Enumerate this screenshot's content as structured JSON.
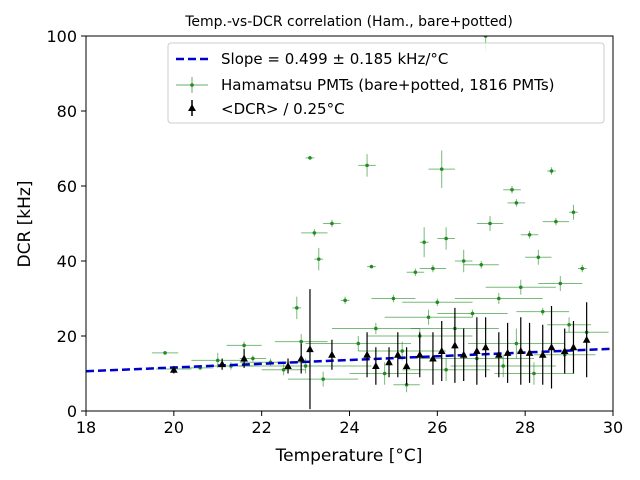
{
  "chart_data": {
    "type": "scatter",
    "title": "Temp.-vs-DCR correlation (Ham., bare+potted)",
    "xlabel": "Temperature [°C]",
    "ylabel": "DCR [kHz]",
    "xlim": [
      18,
      30
    ],
    "ylim": [
      0,
      100
    ],
    "xticks": [
      18,
      20,
      22,
      24,
      26,
      28,
      30
    ],
    "yticks": [
      0,
      20,
      40,
      60,
      80,
      100
    ],
    "legend_position": "top-right",
    "colors": {
      "fit": "#0000cc",
      "pmts": "#228b22",
      "binned": "#000000"
    },
    "series": [
      {
        "name": "Slope = 0.499 ± 0.185 kHz/°C",
        "kind": "fit-line",
        "slope": 0.499,
        "x": [
          18,
          30
        ],
        "y": [
          10.6,
          16.6
        ]
      },
      {
        "name": "Hamamatsu PMTs (bare+potted, 1816 PMTs)",
        "kind": "errorbar-scatter",
        "points": [
          {
            "x": 19.8,
            "y": 15.5,
            "xerr": 0.3,
            "yerr": 0.5
          },
          {
            "x": 20.0,
            "y": 11.2,
            "xerr": 0.4,
            "yerr": 0.6
          },
          {
            "x": 20.6,
            "y": 11.5,
            "xerr": 0.3,
            "yerr": 0.5
          },
          {
            "x": 21.0,
            "y": 13.5,
            "xerr": 0.6,
            "yerr": 2.0
          },
          {
            "x": 21.3,
            "y": 12.0,
            "xerr": 0.5,
            "yerr": 1.0
          },
          {
            "x": 21.6,
            "y": 17.5,
            "xerr": 0.4,
            "yerr": 1.0
          },
          {
            "x": 21.8,
            "y": 14.0,
            "xerr": 0.3,
            "yerr": 0.8
          },
          {
            "x": 22.2,
            "y": 13.0,
            "xerr": 0.7,
            "yerr": 1.0
          },
          {
            "x": 22.5,
            "y": 11.0,
            "xerr": 0.5,
            "yerr": 1.5
          },
          {
            "x": 22.8,
            "y": 27.5,
            "xerr": 0.1,
            "yerr": 3.0
          },
          {
            "x": 22.9,
            "y": 18.5,
            "xerr": 0.6,
            "yerr": 2.0
          },
          {
            "x": 23.1,
            "y": 67.5,
            "xerr": 0.1,
            "yerr": 0.5
          },
          {
            "x": 23.2,
            "y": 47.5,
            "xerr": 0.3,
            "yerr": 1.0
          },
          {
            "x": 23.3,
            "y": 40.5,
            "xerr": 0.1,
            "yerr": 3.0
          },
          {
            "x": 23.4,
            "y": 8.5,
            "xerr": 0.8,
            "yerr": 2.0
          },
          {
            "x": 23.6,
            "y": 50.0,
            "xerr": 0.2,
            "yerr": 1.0
          },
          {
            "x": 23.9,
            "y": 29.5,
            "xerr": 0.1,
            "yerr": 1.0
          },
          {
            "x": 24.4,
            "y": 65.5,
            "xerr": 0.2,
            "yerr": 3.0
          },
          {
            "x": 24.5,
            "y": 38.5,
            "xerr": 0.1,
            "yerr": 0.5
          },
          {
            "x": 24.6,
            "y": 22.0,
            "xerr": 1.0,
            "yerr": 1.5
          },
          {
            "x": 24.8,
            "y": 10.0,
            "xerr": 0.8,
            "yerr": 3.0
          },
          {
            "x": 25.0,
            "y": 30.0,
            "xerr": 0.5,
            "yerr": 1.0
          },
          {
            "x": 25.3,
            "y": 7.0,
            "xerr": 0.3,
            "yerr": 2.0
          },
          {
            "x": 25.5,
            "y": 37.0,
            "xerr": 0.2,
            "yerr": 1.0
          },
          {
            "x": 25.6,
            "y": 20.0,
            "xerr": 1.2,
            "yerr": 2.0
          },
          {
            "x": 25.7,
            "y": 45.0,
            "xerr": 0.1,
            "yerr": 4.0
          },
          {
            "x": 25.9,
            "y": 38.0,
            "xerr": 0.3,
            "yerr": 1.0
          },
          {
            "x": 26.0,
            "y": 29.0,
            "xerr": 0.8,
            "yerr": 1.0
          },
          {
            "x": 26.1,
            "y": 64.5,
            "xerr": 0.3,
            "yerr": 5.0
          },
          {
            "x": 26.2,
            "y": 46.0,
            "xerr": 0.2,
            "yerr": 3.0
          },
          {
            "x": 26.4,
            "y": 22.0,
            "xerr": 1.0,
            "yerr": 2.0
          },
          {
            "x": 26.6,
            "y": 40.0,
            "xerr": 0.2,
            "yerr": 3.0
          },
          {
            "x": 26.8,
            "y": 26.0,
            "xerr": 0.8,
            "yerr": 1.0
          },
          {
            "x": 27.0,
            "y": 39.0,
            "xerr": 0.4,
            "yerr": 1.0
          },
          {
            "x": 27.1,
            "y": 100.0,
            "xerr": 0.2,
            "yerr": 4.0
          },
          {
            "x": 27.2,
            "y": 50.0,
            "xerr": 0.3,
            "yerr": 2.0
          },
          {
            "x": 27.4,
            "y": 30.0,
            "xerr": 1.0,
            "yerr": 1.5
          },
          {
            "x": 27.7,
            "y": 59.0,
            "xerr": 0.2,
            "yerr": 1.0
          },
          {
            "x": 27.8,
            "y": 55.5,
            "xerr": 0.2,
            "yerr": 1.0
          },
          {
            "x": 27.9,
            "y": 33.0,
            "xerr": 0.8,
            "yerr": 2.0
          },
          {
            "x": 28.1,
            "y": 47.0,
            "xerr": 0.2,
            "yerr": 1.0
          },
          {
            "x": 28.3,
            "y": 41.0,
            "xerr": 0.3,
            "yerr": 2.0
          },
          {
            "x": 28.4,
            "y": 26.5,
            "xerr": 0.6,
            "yerr": 1.0
          },
          {
            "x": 28.6,
            "y": 64.0,
            "xerr": 0.1,
            "yerr": 1.0
          },
          {
            "x": 28.7,
            "y": 50.5,
            "xerr": 0.3,
            "yerr": 1.0
          },
          {
            "x": 28.8,
            "y": 34.0,
            "xerr": 0.5,
            "yerr": 2.0
          },
          {
            "x": 29.0,
            "y": 23.0,
            "xerr": 0.5,
            "yerr": 2.0
          },
          {
            "x": 29.1,
            "y": 53.0,
            "xerr": 0.1,
            "yerr": 2.0
          },
          {
            "x": 29.3,
            "y": 38.0,
            "xerr": 0.1,
            "yerr": 1.0
          },
          {
            "x": 29.4,
            "y": 21.0,
            "xerr": 0.5,
            "yerr": 2.0
          },
          {
            "x": 27.5,
            "y": 12.0,
            "xerr": 1.2,
            "yerr": 3.0
          },
          {
            "x": 28.2,
            "y": 10.0,
            "xerr": 0.9,
            "yerr": 3.0
          },
          {
            "x": 26.9,
            "y": 14.0,
            "xerr": 1.3,
            "yerr": 3.0
          },
          {
            "x": 25.2,
            "y": 16.0,
            "xerr": 1.0,
            "yerr": 2.5
          },
          {
            "x": 24.2,
            "y": 18.0,
            "xerr": 1.2,
            "yerr": 2.0
          },
          {
            "x": 23.0,
            "y": 12.0,
            "xerr": 1.5,
            "yerr": 2.0
          },
          {
            "x": 27.8,
            "y": 18.0,
            "xerr": 1.1,
            "yerr": 4.0
          },
          {
            "x": 28.9,
            "y": 15.0,
            "xerr": 0.7,
            "yerr": 3.0
          },
          {
            "x": 26.2,
            "y": 11.0,
            "xerr": 1.0,
            "yerr": 3.0
          },
          {
            "x": 25.8,
            "y": 25.0,
            "xerr": 1.0,
            "yerr": 2.0
          }
        ]
      },
      {
        "name": "<DCR> / 0.25°C",
        "kind": "binned-mean",
        "points": [
          {
            "x": 20.0,
            "y": 11.0,
            "yerr": 1.0
          },
          {
            "x": 21.1,
            "y": 12.5,
            "yerr": 1.5
          },
          {
            "x": 21.6,
            "y": 14.0,
            "yerr": 2.5
          },
          {
            "x": 22.6,
            "y": 12.0,
            "yerr": 2.0
          },
          {
            "x": 22.9,
            "y": 14.0,
            "yerr": 4.0
          },
          {
            "x": 23.1,
            "y": 16.5,
            "yerr": 16.0
          },
          {
            "x": 23.6,
            "y": 15.0,
            "yerr": 4.0
          },
          {
            "x": 24.4,
            "y": 15.0,
            "yerr": 6.0
          },
          {
            "x": 24.6,
            "y": 12.0,
            "yerr": 5.0
          },
          {
            "x": 24.9,
            "y": 13.0,
            "yerr": 4.0
          },
          {
            "x": 25.1,
            "y": 15.0,
            "yerr": 6.0
          },
          {
            "x": 25.3,
            "y": 12.0,
            "yerr": 5.0
          },
          {
            "x": 25.6,
            "y": 15.0,
            "yerr": 6.0
          },
          {
            "x": 25.9,
            "y": 14.0,
            "yerr": 7.0
          },
          {
            "x": 26.1,
            "y": 16.0,
            "yerr": 8.0
          },
          {
            "x": 26.4,
            "y": 17.5,
            "yerr": 10.0
          },
          {
            "x": 26.6,
            "y": 15.0,
            "yerr": 7.0
          },
          {
            "x": 26.9,
            "y": 16.0,
            "yerr": 9.0
          },
          {
            "x": 27.1,
            "y": 17.0,
            "yerr": 8.0
          },
          {
            "x": 27.4,
            "y": 15.0,
            "yerr": 6.0
          },
          {
            "x": 27.6,
            "y": 15.5,
            "yerr": 8.0
          },
          {
            "x": 27.9,
            "y": 16.0,
            "yerr": 9.0
          },
          {
            "x": 28.1,
            "y": 15.5,
            "yerr": 8.0
          },
          {
            "x": 28.4,
            "y": 15.0,
            "yerr": 8.0
          },
          {
            "x": 28.6,
            "y": 17.0,
            "yerr": 11.0
          },
          {
            "x": 28.9,
            "y": 16.0,
            "yerr": 6.0
          },
          {
            "x": 29.1,
            "y": 17.0,
            "yerr": 7.0
          },
          {
            "x": 29.4,
            "y": 19.0,
            "yerr": 10.0
          }
        ]
      }
    ]
  }
}
